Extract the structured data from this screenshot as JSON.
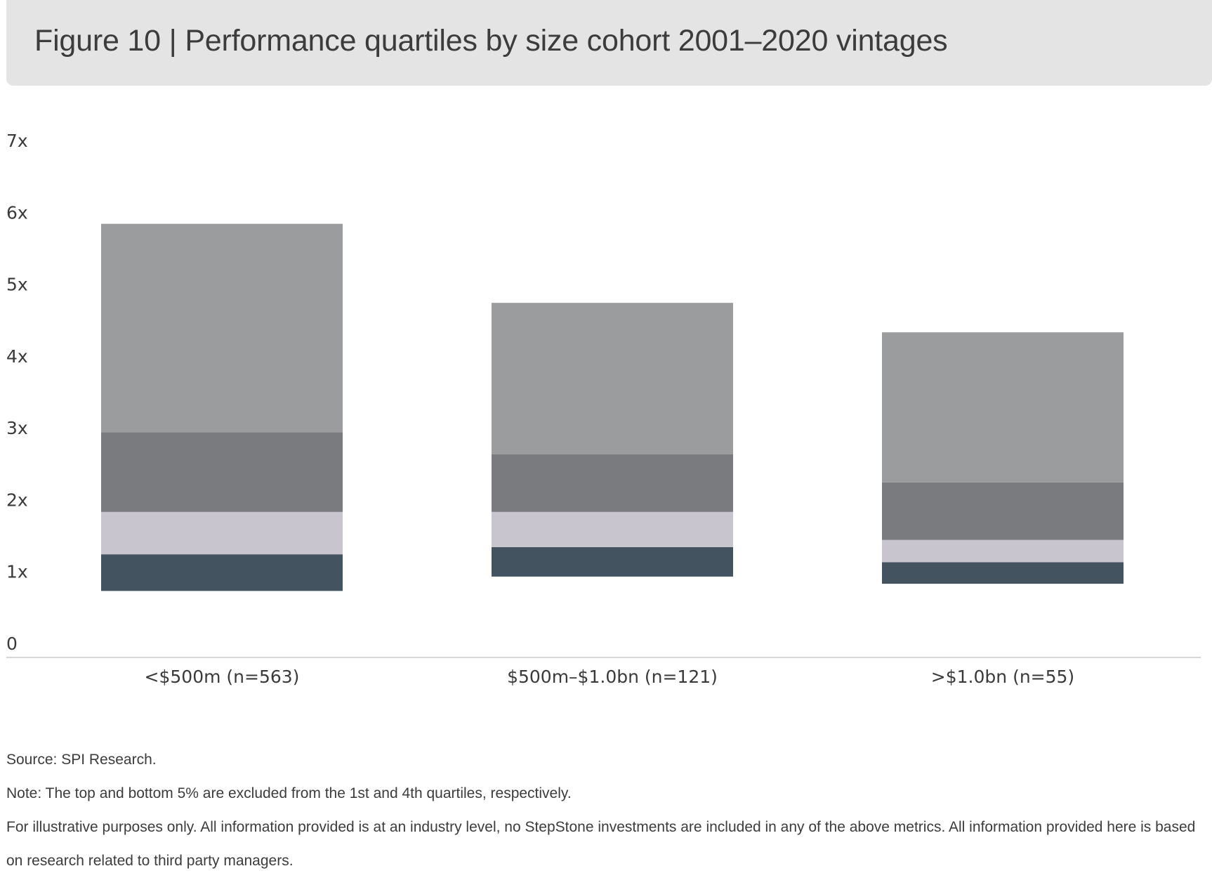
{
  "title": "Figure 10 | Performance quartiles by size cohort 2001–2020 vintages",
  "colors": {
    "title_bg": "#e4e4e4",
    "q1": "#9b9c9e",
    "q2": "#7a7b7f",
    "q3": "#c8c5cf",
    "q4": "#435360",
    "axis": "#c8c8c8",
    "text": "#3a3a3a"
  },
  "chart_data": {
    "type": "bar",
    "stacked": true,
    "floating": true,
    "categories": [
      "<$500m (n=563)",
      "$500m–$1.0bn (n=121)",
      ">$1.0bn (n=55)"
    ],
    "yticks": [
      "0",
      "1x",
      "2x",
      "3x",
      "4x",
      "5x",
      "6x",
      "7x"
    ],
    "ylim": [
      0,
      7
    ],
    "grid": false,
    "legend": "none",
    "boundaries": [
      {
        "category": "<$500m (n=563)",
        "values": [
          0.73,
          1.24,
          1.83,
          2.94,
          5.84
        ]
      },
      {
        "category": "$500m–$1.0bn (n=121)",
        "values": [
          0.93,
          1.34,
          1.83,
          2.63,
          4.74
        ]
      },
      {
        "category": ">$1.0bn (n=55)",
        "values": [
          0.83,
          1.13,
          1.44,
          2.24,
          4.33
        ]
      }
    ]
  },
  "notes": [
    "Source: SPI Research.",
    "Note: The top and bottom 5% are excluded from the 1st and 4th quartiles, respectively.",
    "For illustrative purposes only. All information provided is at an industry level, no StepStone investments are included in any of the above metrics. All information provided here is based on research related to third party managers."
  ]
}
